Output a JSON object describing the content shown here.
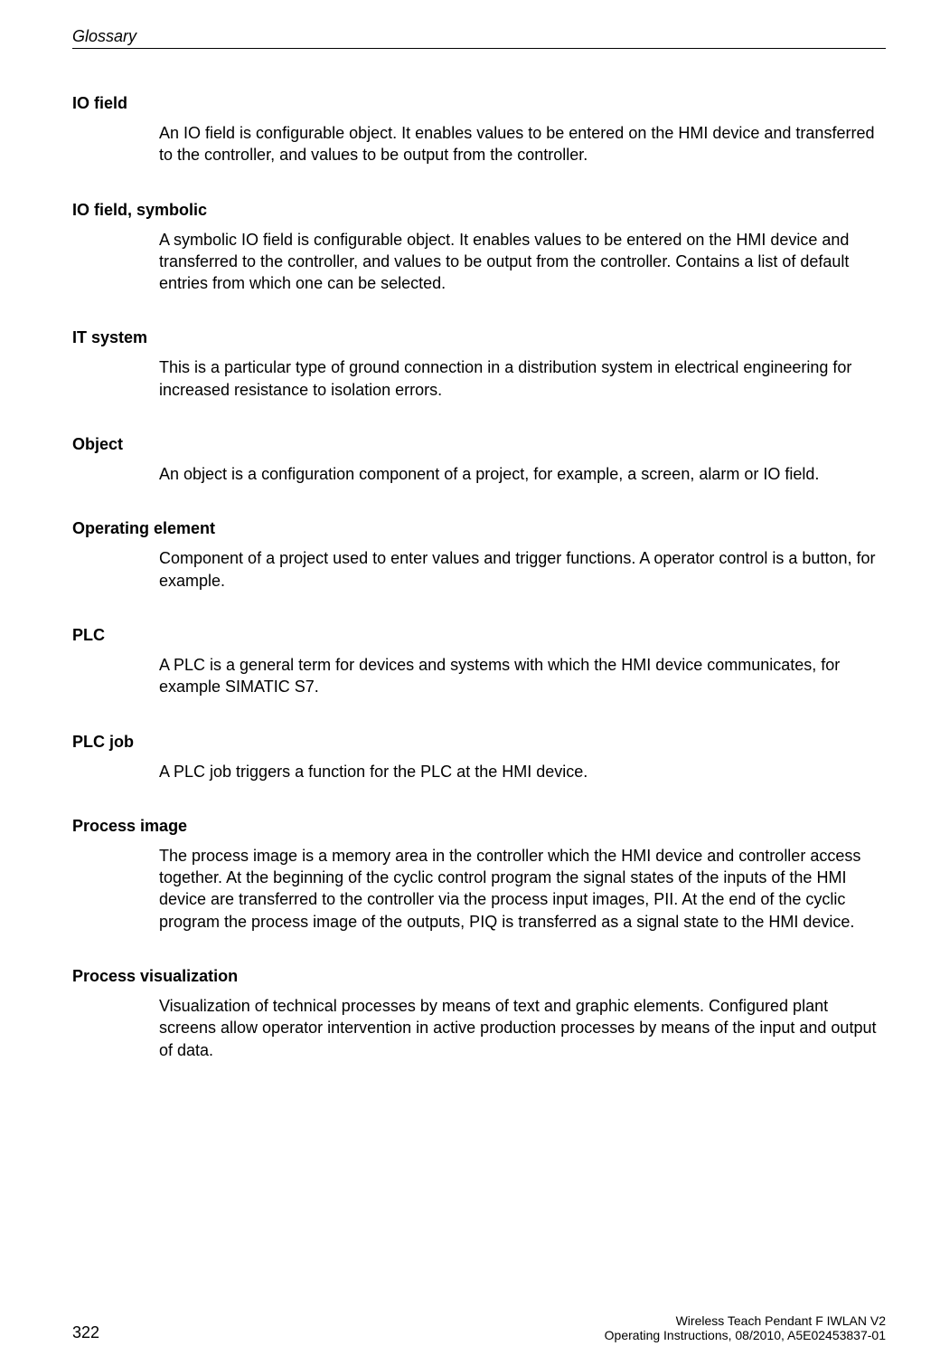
{
  "header": {
    "section_title": "Glossary"
  },
  "entries": [
    {
      "term": "IO field",
      "definition": "An IO field is configurable object. It enables values to be entered on the HMI device and transferred to the controller, and values to be output from the controller."
    },
    {
      "term": "IO field, symbolic",
      "definition": "A symbolic IO field is configurable object. It enables values to be entered on the HMI device and transferred to the controller, and values to be output from the controller. Contains a list of default entries from which one can be selected."
    },
    {
      "term": "IT system",
      "definition": "This is a particular type of ground connection in a distribution system in electrical engineering for increased resistance to isolation errors."
    },
    {
      "term": "Object",
      "definition": "An object is a configuration component of a project, for example, a screen, alarm or IO field."
    },
    {
      "term": "Operating element",
      "definition": "Component of a project used to enter values and trigger functions. A operator control is a button, for example."
    },
    {
      "term": "PLC",
      "definition": "A PLC is a general term for devices and systems with which the HMI device communicates, for example SIMATIC S7."
    },
    {
      "term": "PLC job",
      "definition": "A PLC job triggers a function for the PLC at the HMI device."
    },
    {
      "term": "Process image",
      "definition": "The process image is a memory area in the controller which the HMI device and controller access together. At the beginning of the cyclic control program the signal states of the inputs of the HMI device are transferred to the controller via the process input images, PII. At the end of the cyclic program the process image of the outputs, PIQ is transferred as a signal state to the HMI device."
    },
    {
      "term": "Process visualization",
      "definition": "Visualization of technical processes by means of text and graphic elements. Configured plant screens allow operator intervention in active production processes by means of the input and output of data."
    }
  ],
  "footer": {
    "page_number": "322",
    "doc_title": "Wireless Teach Pendant F IWLAN V2",
    "doc_info": "Operating Instructions, 08/2010, A5E02453837-01"
  }
}
